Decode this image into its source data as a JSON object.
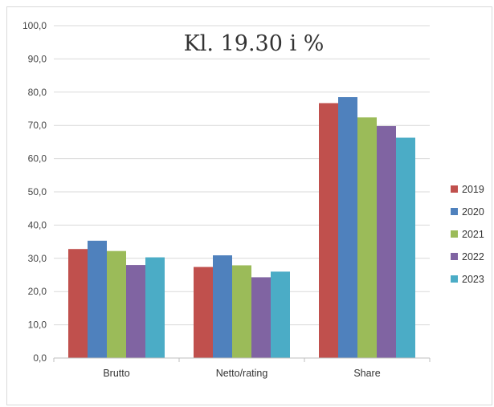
{
  "chart_data": {
    "type": "bar",
    "title": "Kl. 19.30 i %",
    "categories": [
      "Brutto",
      "Netto/rating",
      "Share"
    ],
    "series": [
      {
        "name": "2019",
        "color": "#c0504d",
        "values": [
          32.8,
          27.4,
          76.7
        ]
      },
      {
        "name": "2020",
        "color": "#4f81bd",
        "values": [
          35.3,
          30.9,
          78.5
        ]
      },
      {
        "name": "2021",
        "color": "#9bbb59",
        "values": [
          32.2,
          27.9,
          72.4
        ]
      },
      {
        "name": "2022",
        "color": "#8064a2",
        "values": [
          28.0,
          24.3,
          69.8
        ]
      },
      {
        "name": "2023",
        "color": "#4bacc6",
        "values": [
          30.3,
          26.0,
          66.3
        ]
      }
    ],
    "ylim": [
      0,
      100
    ],
    "yticks": [
      "0,0",
      "10,0",
      "20,0",
      "30,0",
      "40,0",
      "50,0",
      "60,0",
      "70,0",
      "80,0",
      "90,0",
      "100,0"
    ],
    "grid": true,
    "legend": "right",
    "gridColor": "#d9d9d9",
    "axisColor": "#bfbfbf"
  }
}
